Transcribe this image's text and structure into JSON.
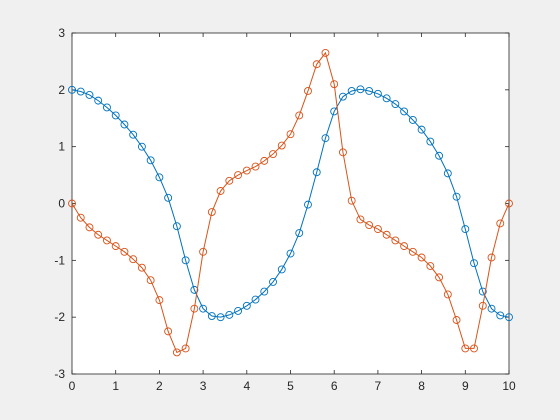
{
  "chart_data": {
    "type": "line",
    "marker": "circle",
    "x": [
      0,
      0.2,
      0.4,
      0.6,
      0.8,
      1.0,
      1.2,
      1.4,
      1.6,
      1.8,
      2.0,
      2.2,
      2.4,
      2.6,
      2.8,
      3.0,
      3.2,
      3.4,
      3.6,
      3.8,
      4.0,
      4.2,
      4.4,
      4.6,
      4.8,
      5.0,
      5.2,
      5.4,
      5.6,
      5.8,
      6.0,
      6.2,
      6.4,
      6.6,
      6.8,
      7.0,
      7.2,
      7.4,
      7.6,
      7.8,
      8.0,
      8.2,
      8.4,
      8.6,
      8.8,
      9.0,
      9.2,
      9.4,
      9.6,
      9.8,
      10
    ],
    "series": [
      {
        "color": "#0072bd",
        "values": [
          2.0,
          1.97,
          1.91,
          1.81,
          1.69,
          1.55,
          1.39,
          1.21,
          1.0,
          0.76,
          0.46,
          0.1,
          -0.4,
          -1.0,
          -1.52,
          -1.85,
          -1.98,
          -2.0,
          -1.96,
          -1.89,
          -1.8,
          -1.69,
          -1.55,
          -1.38,
          -1.16,
          -0.88,
          -0.52,
          -0.02,
          0.55,
          1.15,
          1.62,
          1.88,
          1.98,
          2.01,
          1.98,
          1.93,
          1.85,
          1.75,
          1.62,
          1.47,
          1.3,
          1.09,
          0.84,
          0.53,
          0.12,
          -0.45,
          -1.05,
          -1.55,
          -1.85,
          -1.97,
          -2.0
        ]
      },
      {
        "color": "#d95319",
        "values": [
          0,
          -0.25,
          -0.42,
          -0.55,
          -0.65,
          -0.75,
          -0.85,
          -0.98,
          -1.13,
          -1.35,
          -1.7,
          -2.25,
          -2.62,
          -2.55,
          -1.85,
          -0.85,
          -0.15,
          0.22,
          0.4,
          0.5,
          0.58,
          0.65,
          0.75,
          0.87,
          1.02,
          1.22,
          1.55,
          1.98,
          2.45,
          2.65,
          2.1,
          0.9,
          0.05,
          -0.28,
          -0.38,
          -0.45,
          -0.55,
          -0.65,
          -0.75,
          -0.85,
          -0.95,
          -1.1,
          -1.3,
          -1.6,
          -2.05,
          -2.55,
          -2.55,
          -1.8,
          -0.95,
          -0.35,
          0
        ]
      }
    ],
    "xlim": [
      0,
      10
    ],
    "xticks": [
      0,
      1,
      2,
      3,
      4,
      5,
      6,
      7,
      8,
      9,
      10
    ],
    "ylim": [
      -3,
      3
    ],
    "yticks": [
      -3,
      -2,
      -1,
      0,
      1,
      2,
      3
    ]
  }
}
